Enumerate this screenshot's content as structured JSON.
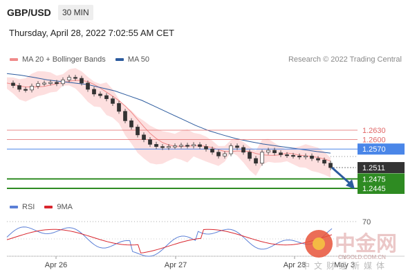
{
  "header": {
    "pair": "GBP/USD",
    "timeframe": "30 MIN",
    "datetime": "Thursday, April 28, 2022 7:02:55 AM CET"
  },
  "legend": {
    "items": [
      {
        "label": "MA 20 + Bollinger Bands",
        "color": "#f08a8a"
      },
      {
        "label": "MA 50",
        "color": "#2c5b9e"
      }
    ],
    "rsi_items": [
      {
        "label": "RSI",
        "color": "#5b7fd6"
      },
      {
        "label": "9MA",
        "color": "#d9262e"
      }
    ]
  },
  "copyright": "Research © 2022 Trading Central",
  "watermark": {
    "text": "中金网",
    "subtext": "CNGOLD.COM.CN",
    "tagline": "中文财经新媒体"
  },
  "colors": {
    "resistance": "#e06666",
    "pivot": "#4a86e8",
    "support": "#2e8b22",
    "last": "#333333",
    "candle_up": "#ffffff",
    "candle_down": "#333333",
    "bb_fill": "#fdd9d9"
  },
  "chart_data": {
    "type": "candlestick",
    "ylim": [
      1.242,
      1.288
    ],
    "x_ticks": [
      "Apr 26",
      "Apr 27",
      "Apr 28",
      "May 3"
    ],
    "levels": [
      {
        "value": 1.263,
        "label": "1.2630",
        "kind": "resistance"
      },
      {
        "value": 1.26,
        "label": "1.2600",
        "kind": "resistance"
      },
      {
        "value": 1.257,
        "label": "1.2570",
        "kind": "pivot"
      },
      {
        "value": 1.2511,
        "label": "1.2511",
        "kind": "last"
      },
      {
        "value": 1.2475,
        "label": "1.2475",
        "kind": "support"
      },
      {
        "value": 1.2445,
        "label": "1.2445",
        "kind": "support"
      }
    ],
    "close_path": [
      1.278,
      1.2772,
      1.276,
      1.2758,
      1.277,
      1.2778,
      1.278,
      1.2782,
      1.2778,
      1.279,
      1.2798,
      1.2795,
      1.278,
      1.276,
      1.2745,
      1.274,
      1.273,
      1.2715,
      1.269,
      1.266,
      1.264,
      1.2615,
      1.26,
      1.2585,
      1.2578,
      1.2575,
      1.2578,
      1.258,
      1.2582,
      1.258,
      1.2584,
      1.2578,
      1.257,
      1.256,
      1.2548,
      1.2555,
      1.258,
      1.2575,
      1.256,
      1.254,
      1.2525,
      1.256,
      1.2566,
      1.2558,
      1.2552,
      1.255,
      1.2548,
      1.2545,
      1.2548,
      1.254,
      1.2535,
      1.2525,
      1.2511
    ],
    "ma50_path": [
      1.281,
      1.2805,
      1.2798,
      1.279,
      1.2785,
      1.278,
      1.2775,
      1.2765,
      1.2755,
      1.274,
      1.2725,
      1.2705,
      1.2685,
      1.2665,
      1.2645,
      1.2628,
      1.2615,
      1.2603,
      1.2594,
      1.2586,
      1.258,
      1.2574,
      1.2568,
      1.2562,
      1.2557
    ],
    "rsi": {
      "levels": [
        70
      ],
      "ylim": [
        20,
        80
      ]
    }
  }
}
